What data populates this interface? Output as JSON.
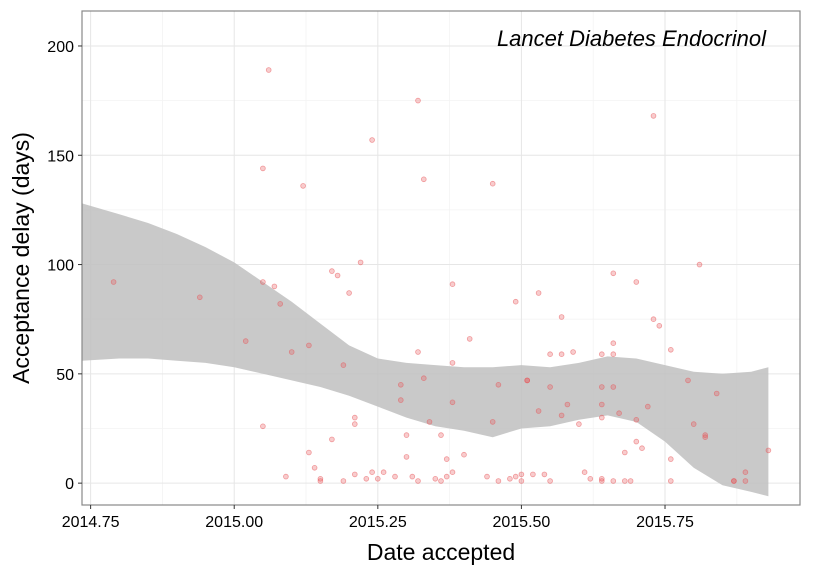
{
  "chart_data": {
    "type": "scatter",
    "annotation": "Lancet Diabetes Endocrinol",
    "xlabel": "Date accepted",
    "ylabel": "Acceptance delay (days)",
    "xlim": [
      2014.735,
      2015.985
    ],
    "ylim": [
      -10,
      216
    ],
    "xticks": [
      2014.75,
      2015.0,
      2015.25,
      2015.5,
      2015.75
    ],
    "xtick_labels": [
      "2014.75",
      "2015.00",
      "2015.25",
      "2015.50",
      "2015.75"
    ],
    "yticks": [
      0,
      50,
      100,
      150,
      200
    ],
    "ytick_labels": [
      "0",
      "50",
      "100",
      "150",
      "200"
    ],
    "grid": true,
    "colors": {
      "points": "#e8555a",
      "ribbon": "#c0c0c0",
      "panel_border": "#888888",
      "grid_major": "#e6e6e6",
      "grid_minor": "#f3f3f3"
    },
    "points": [
      {
        "x": 2014.79,
        "y": 92
      },
      {
        "x": 2014.94,
        "y": 85
      },
      {
        "x": 2015.02,
        "y": 65
      },
      {
        "x": 2015.05,
        "y": 144
      },
      {
        "x": 2015.05,
        "y": 92
      },
      {
        "x": 2015.05,
        "y": 26
      },
      {
        "x": 2015.06,
        "y": 189
      },
      {
        "x": 2015.07,
        "y": 90
      },
      {
        "x": 2015.08,
        "y": 82
      },
      {
        "x": 2015.09,
        "y": 3
      },
      {
        "x": 2015.1,
        "y": 60
      },
      {
        "x": 2015.12,
        "y": 136
      },
      {
        "x": 2015.13,
        "y": 63
      },
      {
        "x": 2015.13,
        "y": 14
      },
      {
        "x": 2015.14,
        "y": 7
      },
      {
        "x": 2015.15,
        "y": 2
      },
      {
        "x": 2015.15,
        "y": 1
      },
      {
        "x": 2015.17,
        "y": 20
      },
      {
        "x": 2015.17,
        "y": 97
      },
      {
        "x": 2015.18,
        "y": 95
      },
      {
        "x": 2015.19,
        "y": 54
      },
      {
        "x": 2015.19,
        "y": 1
      },
      {
        "x": 2015.2,
        "y": 87
      },
      {
        "x": 2015.21,
        "y": 30
      },
      {
        "x": 2015.21,
        "y": 4
      },
      {
        "x": 2015.21,
        "y": 27
      },
      {
        "x": 2015.22,
        "y": 101
      },
      {
        "x": 2015.23,
        "y": 2
      },
      {
        "x": 2015.24,
        "y": 157
      },
      {
        "x": 2015.24,
        "y": 5
      },
      {
        "x": 2015.25,
        "y": 2
      },
      {
        "x": 2015.26,
        "y": 5
      },
      {
        "x": 2015.28,
        "y": 3
      },
      {
        "x": 2015.29,
        "y": 45
      },
      {
        "x": 2015.29,
        "y": 38
      },
      {
        "x": 2015.3,
        "y": 12
      },
      {
        "x": 2015.3,
        "y": 22
      },
      {
        "x": 2015.31,
        "y": 3
      },
      {
        "x": 2015.32,
        "y": 175
      },
      {
        "x": 2015.32,
        "y": 60
      },
      {
        "x": 2015.32,
        "y": 1
      },
      {
        "x": 2015.33,
        "y": 48
      },
      {
        "x": 2015.33,
        "y": 139
      },
      {
        "x": 2015.34,
        "y": 28
      },
      {
        "x": 2015.35,
        "y": 2
      },
      {
        "x": 2015.36,
        "y": 22
      },
      {
        "x": 2015.36,
        "y": 1
      },
      {
        "x": 2015.37,
        "y": 11
      },
      {
        "x": 2015.37,
        "y": 3
      },
      {
        "x": 2015.38,
        "y": 5
      },
      {
        "x": 2015.38,
        "y": 91
      },
      {
        "x": 2015.38,
        "y": 55
      },
      {
        "x": 2015.38,
        "y": 37
      },
      {
        "x": 2015.4,
        "y": 13
      },
      {
        "x": 2015.41,
        "y": 66
      },
      {
        "x": 2015.44,
        "y": 3
      },
      {
        "x": 2015.45,
        "y": 28
      },
      {
        "x": 2015.45,
        "y": 137
      },
      {
        "x": 2015.46,
        "y": 45
      },
      {
        "x": 2015.46,
        "y": 1
      },
      {
        "x": 2015.48,
        "y": 2
      },
      {
        "x": 2015.49,
        "y": 3
      },
      {
        "x": 2015.49,
        "y": 83
      },
      {
        "x": 2015.5,
        "y": 1
      },
      {
        "x": 2015.5,
        "y": 4
      },
      {
        "x": 2015.51,
        "y": 47
      },
      {
        "x": 2015.51,
        "y": 47
      },
      {
        "x": 2015.52,
        "y": 4
      },
      {
        "x": 2015.53,
        "y": 87
      },
      {
        "x": 2015.53,
        "y": 33
      },
      {
        "x": 2015.54,
        "y": 4
      },
      {
        "x": 2015.55,
        "y": 59
      },
      {
        "x": 2015.55,
        "y": 44
      },
      {
        "x": 2015.55,
        "y": 1
      },
      {
        "x": 2015.57,
        "y": 31
      },
      {
        "x": 2015.57,
        "y": 59
      },
      {
        "x": 2015.57,
        "y": 76
      },
      {
        "x": 2015.58,
        "y": 36
      },
      {
        "x": 2015.59,
        "y": 60
      },
      {
        "x": 2015.6,
        "y": 27
      },
      {
        "x": 2015.61,
        "y": 5
      },
      {
        "x": 2015.62,
        "y": 2
      },
      {
        "x": 2015.64,
        "y": 44
      },
      {
        "x": 2015.64,
        "y": 36
      },
      {
        "x": 2015.64,
        "y": 30
      },
      {
        "x": 2015.64,
        "y": 59
      },
      {
        "x": 2015.64,
        "y": 2
      },
      {
        "x": 2015.64,
        "y": 1
      },
      {
        "x": 2015.66,
        "y": 96
      },
      {
        "x": 2015.66,
        "y": 64
      },
      {
        "x": 2015.66,
        "y": 59
      },
      {
        "x": 2015.66,
        "y": 44
      },
      {
        "x": 2015.66,
        "y": 1
      },
      {
        "x": 2015.67,
        "y": 32
      },
      {
        "x": 2015.68,
        "y": 14
      },
      {
        "x": 2015.68,
        "y": 1
      },
      {
        "x": 2015.69,
        "y": 1
      },
      {
        "x": 2015.7,
        "y": 19
      },
      {
        "x": 2015.7,
        "y": 92
      },
      {
        "x": 2015.7,
        "y": 29
      },
      {
        "x": 2015.71,
        "y": 16
      },
      {
        "x": 2015.72,
        "y": 35
      },
      {
        "x": 2015.73,
        "y": 168
      },
      {
        "x": 2015.73,
        "y": 75
      },
      {
        "x": 2015.74,
        "y": 72
      },
      {
        "x": 2015.76,
        "y": 61
      },
      {
        "x": 2015.76,
        "y": 11
      },
      {
        "x": 2015.76,
        "y": 1
      },
      {
        "x": 2015.79,
        "y": 47
      },
      {
        "x": 2015.8,
        "y": 27
      },
      {
        "x": 2015.81,
        "y": 100
      },
      {
        "x": 2015.82,
        "y": 22
      },
      {
        "x": 2015.82,
        "y": 21
      },
      {
        "x": 2015.84,
        "y": 41
      },
      {
        "x": 2015.87,
        "y": 1
      },
      {
        "x": 2015.87,
        "y": 1
      },
      {
        "x": 2015.89,
        "y": 5
      },
      {
        "x": 2015.89,
        "y": 1
      },
      {
        "x": 2015.93,
        "y": 15
      }
    ],
    "ribbon": {
      "x": [
        2014.735,
        2014.8,
        2014.85,
        2014.9,
        2014.95,
        2015.0,
        2015.05,
        2015.1,
        2015.15,
        2015.2,
        2015.25,
        2015.3,
        2015.35,
        2015.4,
        2015.45,
        2015.5,
        2015.55,
        2015.6,
        2015.65,
        2015.7,
        2015.75,
        2015.8,
        2015.85,
        2015.9,
        2015.93
      ],
      "upper": [
        128,
        123,
        119,
        114,
        108,
        101,
        92,
        83,
        73,
        63,
        57,
        55,
        54,
        53,
        53,
        54,
        53,
        55,
        58,
        57,
        54,
        51,
        50,
        51,
        53
      ],
      "lower": [
        56,
        57,
        57,
        56,
        55,
        53,
        50,
        47,
        44,
        40,
        35,
        30,
        26,
        24,
        21,
        25,
        26,
        29,
        31,
        28,
        19,
        7,
        -1,
        -4,
        -6
      ]
    }
  }
}
